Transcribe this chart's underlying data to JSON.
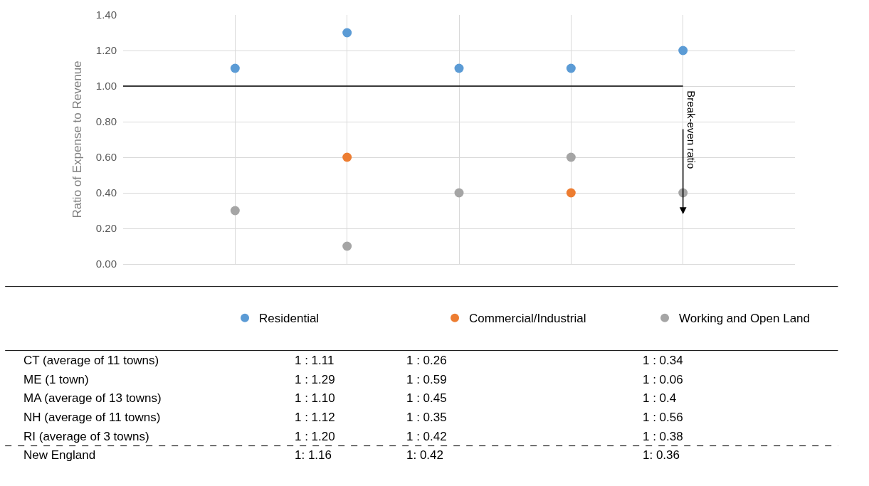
{
  "chart_data": {
    "type": "scatter",
    "ylabel": "Ratio of Expense to Revenue",
    "categories": [
      null,
      null,
      null,
      null,
      null
    ],
    "ylim": [
      0,
      1.4
    ],
    "yticks": [
      {
        "value": 0,
        "label": "0.00"
      },
      {
        "value": 0.2,
        "label": "0.20"
      },
      {
        "value": 0.4,
        "label": "0.40"
      },
      {
        "value": 0.6,
        "label": "0.60"
      },
      {
        "value": 0.8,
        "label": "0.80"
      },
      {
        "value": 1.0,
        "label": "1.00"
      },
      {
        "value": 1.2,
        "label": "1.20"
      },
      {
        "value": 1.4,
        "label": "1.40"
      }
    ],
    "tick_labels": "y",
    "grid": true,
    "marker": "circle",
    "legend": "bottom",
    "series": [
      {
        "name": "Residential",
        "color": "#5b9bd5",
        "values": [
          1.1,
          1.3,
          1.1,
          1.1,
          1.2
        ]
      },
      {
        "name": "Commercial/Industrial",
        "color": "#ed7d31",
        "values": [
          null,
          0.6,
          null,
          0.4,
          null
        ]
      },
      {
        "name": "Working and Open Land",
        "color": "#a5a5a5",
        "values": [
          0.3,
          0.1,
          0.4,
          0.6,
          0.4
        ]
      }
    ],
    "ref_lines": [
      {
        "axis": "y",
        "value": 1.0,
        "label": "Break-even ratio",
        "color": "#000000"
      }
    ],
    "annotations": [
      "CT (average of 11 towns)",
      "1 : 1.11",
      "1 : 0.26",
      "1 : 0.34",
      "ME (1 town)",
      "1 : 1.29",
      "1 : 0.59",
      "1 : 0.06",
      "MA (average of 13 towns)",
      "1 : 1.10",
      "1 : 0.45",
      "1 : 0.4",
      "NH (average of 11 towns)",
      "1 : 1.12",
      "1 : 0.35",
      "1 : 0.56",
      "RI (average of 3 towns)",
      "1 : 1.20",
      "1 : 0.42",
      "1 : 0.38",
      "New England",
      "1: 1.16",
      "1: 0.42",
      "1: 0.36"
    ]
  }
}
